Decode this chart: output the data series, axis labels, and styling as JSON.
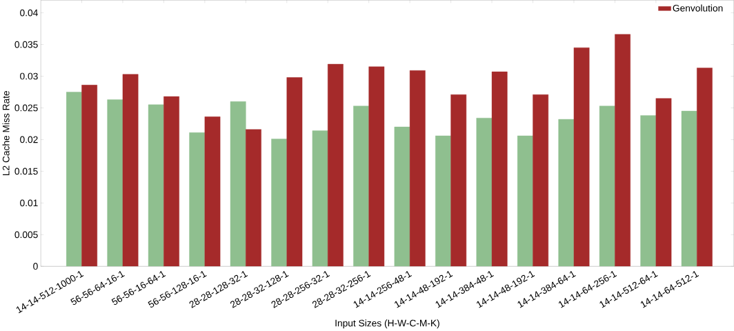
{
  "chart_data": {
    "type": "bar",
    "xlabel": "Input Sizes (H-W-C-M-K)",
    "ylabel": "L2 Cache Miss Rate",
    "categories": [
      "14-14-512-1000-1",
      "56-56-64-16-1",
      "56-56-16-64-1",
      "56-56-128-16-1",
      "28-28-128-32-1",
      "28-28-32-128-1",
      "28-28-256-32-1",
      "28-28-32-256-1",
      "14-14-256-48-1",
      "14-14-48-192-1",
      "14-14-384-48-1",
      "14-14-48-192-1",
      "14-14-384-64-1",
      "14-14-64-256-1",
      "14-14-512-64-1",
      "14-14-64-512-1"
    ],
    "series": [
      {
        "color": "#8fbf8f",
        "values": [
          0.0275,
          0.0263,
          0.0255,
          0.0211,
          0.026,
          0.0201,
          0.0214,
          0.0253,
          0.022,
          0.0206,
          0.0234,
          0.0206,
          0.0232,
          0.0253,
          0.0238,
          0.0245
        ]
      },
      {
        "name": "Genvolution",
        "color": "#a52a2a",
        "values": [
          0.0286,
          0.0303,
          0.0268,
          0.0236,
          0.0216,
          0.0298,
          0.0319,
          0.0315,
          0.0309,
          0.0271,
          0.0307,
          0.0271,
          0.0345,
          0.0366,
          0.0265,
          0.0313
        ]
      }
    ],
    "ylim": [
      0,
      0.042
    ],
    "yticks": [
      0,
      0.005,
      0.01,
      0.015,
      0.02,
      0.025,
      0.03,
      0.035,
      0.04
    ],
    "grid": false,
    "legend": "top right"
  }
}
